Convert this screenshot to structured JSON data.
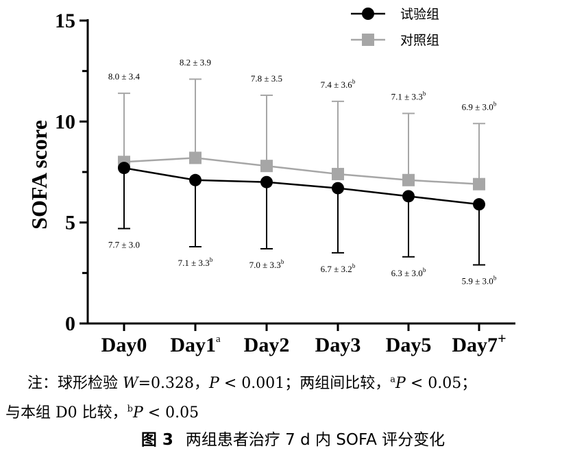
{
  "chart_data": {
    "type": "line",
    "ylabel": "SOFA score",
    "ylim": [
      0,
      15
    ],
    "yticks": [
      "0",
      "5",
      "10",
      "15"
    ],
    "categories": [
      {
        "label": "Day0",
        "sup": ""
      },
      {
        "label": "Day1",
        "sup": "a"
      },
      {
        "label": "Day2",
        "sup": ""
      },
      {
        "label": "Day3",
        "sup": ""
      },
      {
        "label": "Day5",
        "sup": ""
      },
      {
        "label": "Day7",
        "sup": "+"
      }
    ],
    "legend_position": "top-right",
    "series": [
      {
        "name": "试验组",
        "color": "#000000",
        "marker": "circle",
        "error_direction": "down",
        "values": [
          7.7,
          7.1,
          7.0,
          6.7,
          6.3,
          5.9
        ],
        "sd": [
          3.0,
          3.3,
          3.3,
          3.2,
          3.0,
          3.0
        ],
        "labels": [
          {
            "text": "7.7 ± 3.0",
            "sup": ""
          },
          {
            "text": "7.1 ± 3.3",
            "sup": "b"
          },
          {
            "text": "7.0 ± 3.3",
            "sup": "b"
          },
          {
            "text": "6.7 ± 3.2",
            "sup": "b"
          },
          {
            "text": "6.3 ± 3.0",
            "sup": "b"
          },
          {
            "text": "5.9 ± 3.0",
            "sup": "b"
          }
        ]
      },
      {
        "name": "对照组",
        "color": "#a6a6a6",
        "marker": "square",
        "error_direction": "up",
        "values": [
          8.0,
          8.2,
          7.8,
          7.4,
          7.1,
          6.9
        ],
        "sd": [
          3.4,
          3.9,
          3.5,
          3.6,
          3.3,
          3.0
        ],
        "labels": [
          {
            "text": "8.0 ± 3.4",
            "sup": ""
          },
          {
            "text": "8.2 ± 3.9",
            "sup": ""
          },
          {
            "text": "7.8 ± 3.5",
            "sup": ""
          },
          {
            "text": "7.4 ± 3.6",
            "sup": "b"
          },
          {
            "text": "7.1 ± 3.3",
            "sup": "b"
          },
          {
            "text": "6.9 ± 3.0",
            "sup": "b"
          }
        ]
      }
    ]
  },
  "note": {
    "line1_prefix": "注：球形检验 ",
    "line1_w": "W",
    "line1_w_value": "=0.328，",
    "line1_p": "P",
    "line1_p_value": " < 0.001；两组间比较，",
    "line1_sup": "a",
    "line1_p2": "P",
    "line1_p2_value": " < 0.05；",
    "line2_prefix": "与本组 D0 比较，",
    "line2_sup": "b",
    "line2_p": "P",
    "line2_p_value": " < 0.05"
  },
  "caption": {
    "figure_number": "图 3",
    "title": "两组患者治疗 7 d 内 SOFA 评分变化"
  }
}
